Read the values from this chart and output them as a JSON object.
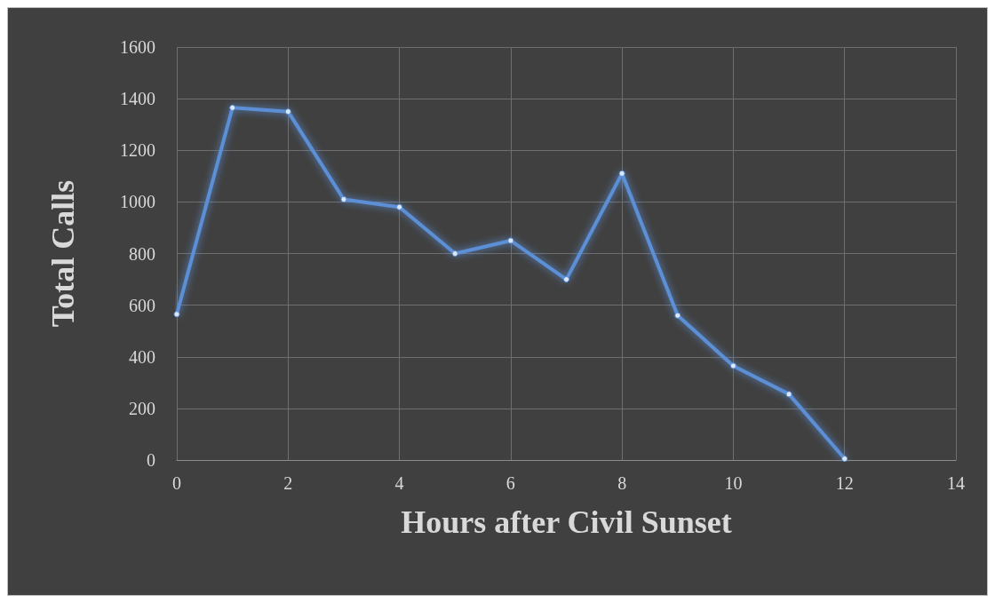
{
  "chart_data": {
    "type": "line",
    "xlabel": "Hours after Civil Sunset",
    "ylabel": "Total Calls",
    "x": [
      0,
      1,
      2,
      3,
      4,
      5,
      6,
      7,
      8,
      9,
      10,
      11,
      12
    ],
    "series": [
      {
        "color": "#5b8fd6",
        "values": [
          565,
          1365,
          1350,
          1010,
          980,
          800,
          850,
          700,
          1110,
          560,
          365,
          255,
          5
        ]
      }
    ],
    "xlim": [
      0,
      14
    ],
    "xticks": [
      0,
      2,
      4,
      6,
      8,
      10,
      12,
      14
    ],
    "ylim": [
      0,
      1600
    ],
    "yticks": [
      0,
      200,
      400,
      600,
      800,
      1000,
      1200,
      1400,
      1600
    ],
    "grid": true,
    "marker": "circle",
    "line_style": "solid"
  }
}
